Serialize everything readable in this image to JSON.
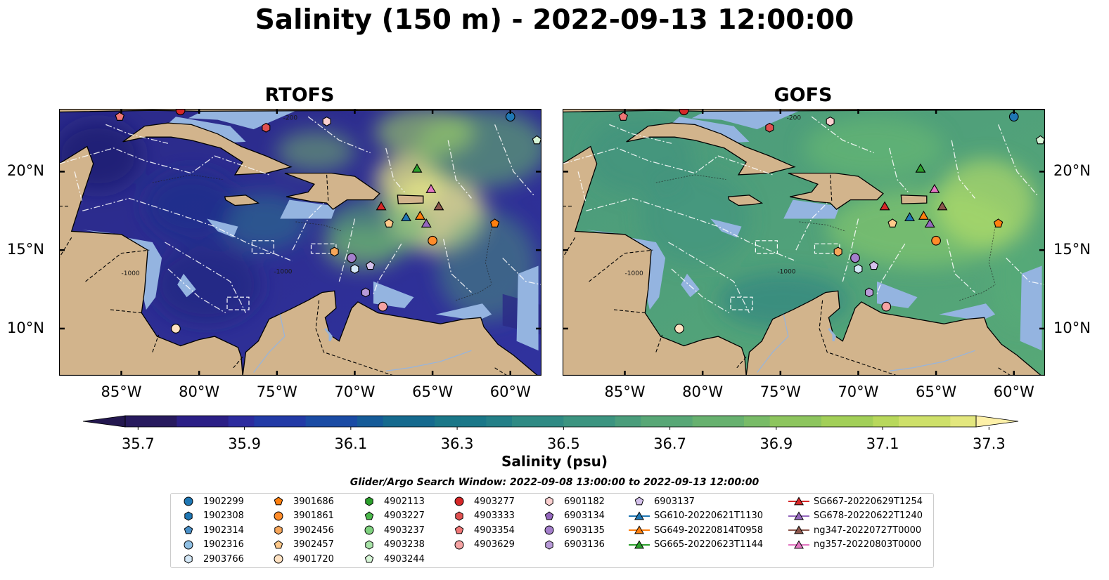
{
  "title": "Salinity (150 m) - 2022-09-13 12:00:00",
  "panels": [
    {
      "title": "RTOFS",
      "model": "rtofs"
    },
    {
      "title": "GOFS",
      "model": "gofs"
    }
  ],
  "map_extent": {
    "lon": [
      -89,
      -58
    ],
    "lat": [
      7,
      24
    ]
  },
  "lon_ticks": [
    "85°W",
    "80°W",
    "75°W",
    "70°W",
    "65°W",
    "60°W"
  ],
  "lon_tick_values": [
    -85,
    -80,
    -75,
    -70,
    -65,
    -60
  ],
  "lat_ticks": [
    "10°N",
    "15°N",
    "20°N"
  ],
  "lat_tick_values": [
    10,
    15,
    20
  ],
  "bathymetry_contour_labels": [
    "-200",
    "-1000"
  ],
  "colorbar": {
    "label": "Salinity (psu)",
    "min": 35.6,
    "max": 37.4,
    "step": 0.05,
    "extend": "both",
    "tick_labels": [
      "35.7",
      "35.9",
      "36.1",
      "36.3",
      "36.5",
      "36.7",
      "36.9",
      "37.1",
      "37.3"
    ],
    "tick_values": [
      35.7,
      35.9,
      36.1,
      36.3,
      36.5,
      36.7,
      36.9,
      37.1,
      37.3
    ],
    "colormap": "haline"
  },
  "colors": {
    "land": "#d2b48c",
    "shelf_water": "#94b4e0",
    "low_salinity": "#2a186c",
    "high_salinity": "#fdee99"
  },
  "search_window": "Glider/Argo Search Window: 2022-09-08 13:00:00 to 2022-09-13 12:00:00",
  "platforms": [
    {
      "name": "1902299",
      "marker": "circle",
      "color": "#1f77b4",
      "lon": -60.0,
      "lat": 23.5
    },
    {
      "name": "1902308",
      "marker": "hexagon",
      "color": "#1f77b4",
      "lon": null,
      "lat": null
    },
    {
      "name": "1902314",
      "marker": "pentagon",
      "color": "#4a90c8",
      "lon": null,
      "lat": null
    },
    {
      "name": "1902316",
      "marker": "circle",
      "color": "#8fbfe3",
      "lon": null,
      "lat": null
    },
    {
      "name": "2903766",
      "marker": "hexagon",
      "color": "#d4e8f7",
      "lon": -70.0,
      "lat": 13.8
    },
    {
      "name": "3901686",
      "marker": "pentagon",
      "color": "#ff7f0e",
      "lon": -61.0,
      "lat": 16.7
    },
    {
      "name": "3901861",
      "marker": "circle",
      "color": "#ff8c2a",
      "lon": -65.0,
      "lat": 15.6
    },
    {
      "name": "3902456",
      "marker": "hexagon",
      "color": "#f7a65a",
      "lon": -71.3,
      "lat": 14.9
    },
    {
      "name": "3902457",
      "marker": "pentagon",
      "color": "#ffc98a",
      "lon": -67.8,
      "lat": 16.7
    },
    {
      "name": "4901720",
      "marker": "circle",
      "color": "#ffe2c2",
      "lon": -81.5,
      "lat": 10.0
    },
    {
      "name": "4902113",
      "marker": "hexagon",
      "color": "#2ca02c",
      "lon": null,
      "lat": null
    },
    {
      "name": "4903227",
      "marker": "pentagon",
      "color": "#4bb84b",
      "lon": null,
      "lat": null
    },
    {
      "name": "4903237",
      "marker": "circle",
      "color": "#7fd27f",
      "lon": null,
      "lat": null
    },
    {
      "name": "4903238",
      "marker": "hexagon",
      "color": "#a8e3a8",
      "lon": null,
      "lat": null
    },
    {
      "name": "4903244",
      "marker": "pentagon",
      "color": "#d6f5d6",
      "lon": -58.3,
      "lat": 22.0
    },
    {
      "name": "4903277",
      "marker": "circle",
      "color": "#d62728",
      "lon": -81.2,
      "lat": 23.9
    },
    {
      "name": "4903333",
      "marker": "hexagon",
      "color": "#e05050",
      "lon": -75.7,
      "lat": 22.8
    },
    {
      "name": "4903354",
      "marker": "pentagon",
      "color": "#ef7676",
      "lon": -85.1,
      "lat": 23.5
    },
    {
      "name": "4903629",
      "marker": "circle",
      "color": "#f5a3a3",
      "lon": -68.2,
      "lat": 11.4
    },
    {
      "name": "6901182",
      "marker": "hexagon",
      "color": "#fbd0d0",
      "lon": -71.8,
      "lat": 23.2
    },
    {
      "name": "6903134",
      "marker": "pentagon",
      "color": "#9467bd",
      "lon": null,
      "lat": null
    },
    {
      "name": "6903135",
      "marker": "circle",
      "color": "#a47fcc",
      "lon": -70.2,
      "lat": 14.5
    },
    {
      "name": "6903136",
      "marker": "hexagon",
      "color": "#b89ad8",
      "lon": -69.3,
      "lat": 12.3
    },
    {
      "name": "6903137",
      "marker": "pentagon",
      "color": "#d5c2ec",
      "lon": -69.0,
      "lat": 14.0
    },
    {
      "name": "SG610-20220621T1130",
      "marker": "triangle",
      "color": "#1f77b4",
      "lon": -66.7,
      "lat": 17.1
    },
    {
      "name": "SG649-20220814T0958",
      "marker": "triangle",
      "color": "#ff7f0e",
      "lon": -65.8,
      "lat": 17.2
    },
    {
      "name": "SG665-20220623T1144",
      "marker": "triangle",
      "color": "#2ca02c",
      "lon": -66.0,
      "lat": 20.2
    },
    {
      "name": "SG667-20220629T1254",
      "marker": "triangle",
      "color": "#d62728",
      "lon": -68.3,
      "lat": 17.8
    },
    {
      "name": "SG678-20220622T1240",
      "marker": "triangle",
      "color": "#9467bd",
      "lon": -65.4,
      "lat": 16.7
    },
    {
      "name": "ng347-20220727T0000",
      "marker": "triangle",
      "color": "#8c564b",
      "lon": -64.6,
      "lat": 17.8
    },
    {
      "name": "ng357-20220803T0000",
      "marker": "triangle",
      "color": "#e377c2",
      "lon": -65.1,
      "lat": 18.9
    }
  ]
}
